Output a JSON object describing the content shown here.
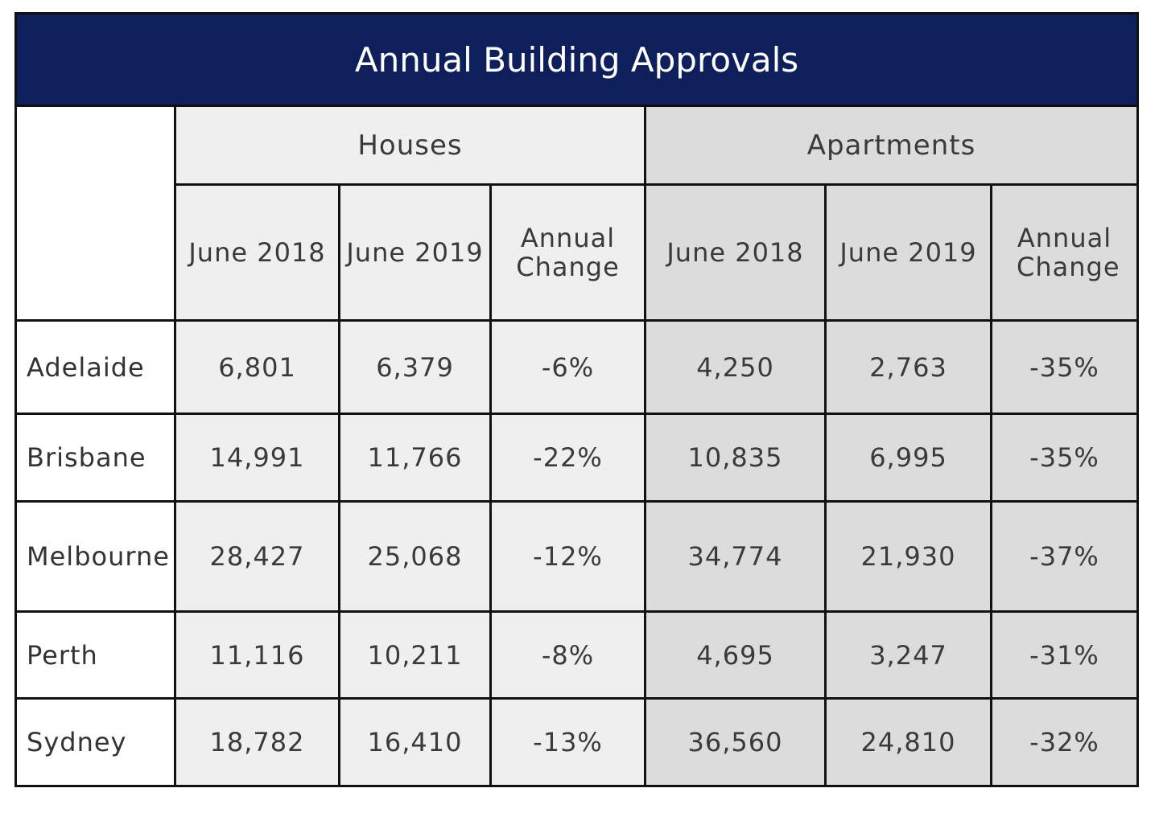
{
  "chart_data": {
    "type": "table",
    "title": "Annual Building Approvals",
    "groups": [
      "Houses",
      "Apartments"
    ],
    "columns": {
      "houses": [
        "June 2018",
        "June 2019",
        "Annual Change"
      ],
      "apartments": [
        "June 2018",
        "June 2019",
        "Annual Change"
      ]
    },
    "rows": [
      {
        "city": "Adelaide",
        "houses": [
          "6,801",
          "6,379",
          "-6%"
        ],
        "apartments": [
          "4,250",
          "2,763",
          "-35%"
        ]
      },
      {
        "city": "Brisbane",
        "houses": [
          "14,991",
          "11,766",
          "-22%"
        ],
        "apartments": [
          "10,835",
          "6,995",
          "-35%"
        ]
      },
      {
        "city": "Melbourne",
        "houses": [
          "28,427",
          "25,068",
          "-12%"
        ],
        "apartments": [
          "34,774",
          "21,930",
          "-37%"
        ]
      },
      {
        "city": "Perth",
        "houses": [
          "11,116",
          "10,211",
          "-8%"
        ],
        "apartments": [
          "4,695",
          "3,247",
          "-31%"
        ]
      },
      {
        "city": "Sydney",
        "houses": [
          "18,782",
          "16,410",
          "-13%"
        ],
        "apartments": [
          "36,560",
          "24,810",
          "-32%"
        ]
      }
    ]
  },
  "colors": {
    "title_background": "#0f1f5c",
    "houses_background": "#efefef",
    "apartments_background": "#dcdcdc"
  }
}
